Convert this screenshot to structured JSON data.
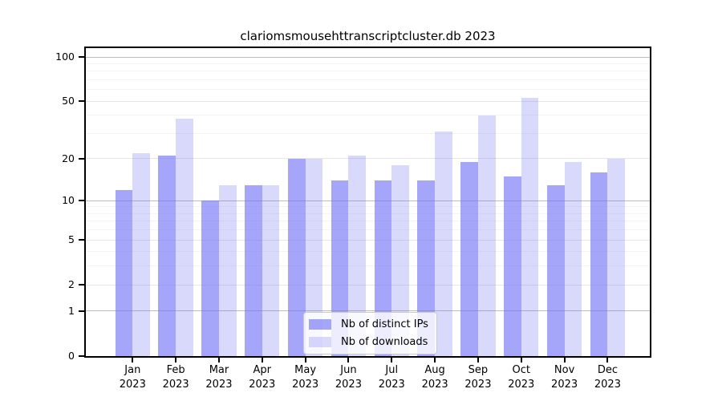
{
  "title": "clariomsmousehttranscriptcluster.db 2023",
  "chart_data": {
    "type": "bar",
    "categories": [
      "Jan",
      "Feb",
      "Mar",
      "Apr",
      "May",
      "Jun",
      "Jul",
      "Aug",
      "Sep",
      "Oct",
      "Nov",
      "Dec"
    ],
    "year_label": "2023",
    "series": [
      {
        "name": "Nb of distinct IPs",
        "color": "rgba(110,110,245,0.62)",
        "values": [
          12,
          21,
          10,
          13,
          20,
          14,
          14,
          14,
          19,
          15,
          13,
          16
        ]
      },
      {
        "name": "Nb of downloads",
        "color": "rgba(110,110,245,0.26)",
        "values": [
          22,
          38,
          13,
          13,
          20,
          21,
          18,
          31,
          40,
          53,
          19,
          20
        ]
      }
    ],
    "yticks": [
      0,
      1,
      2,
      5,
      10,
      20,
      50,
      100
    ],
    "minor_yticks": [
      3,
      4,
      6,
      7,
      8,
      9,
      30,
      40,
      60,
      70,
      80,
      90
    ],
    "ylim": [
      0,
      100
    ],
    "scale": "log1p",
    "grid": "on",
    "legend_position": "bottom-center",
    "xlabel": "",
    "ylabel": ""
  },
  "colors": {
    "grid_decade": "#bdbdbd",
    "grid_labeled": "#e6e6e6",
    "grid_minor": "#f4f4f4",
    "axis": "#000000",
    "legend_border": "#cccccc"
  }
}
